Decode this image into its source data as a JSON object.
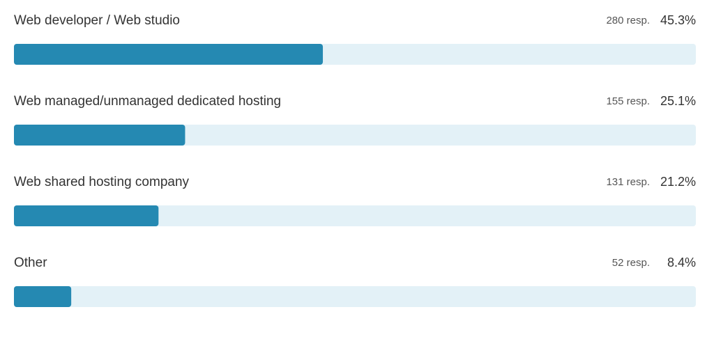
{
  "chart_data": {
    "type": "bar",
    "orientation": "horizontal",
    "categories": [
      "Web developer / Web studio",
      "Web managed/unmanaged dedicated hosting",
      "Web shared hosting company",
      "Other"
    ],
    "values": [
      45.3,
      25.1,
      21.2,
      8.4
    ],
    "value_labels": [
      "45.3%",
      "25.1%",
      "21.2%",
      "8.4%"
    ],
    "responses": [
      280,
      155,
      131,
      52
    ],
    "response_labels": [
      "280 resp.",
      "155 resp.",
      "131 resp.",
      "52 resp."
    ],
    "xlim": [
      0,
      100
    ],
    "color": "#2589b2",
    "track_color": "#e3f1f7"
  }
}
